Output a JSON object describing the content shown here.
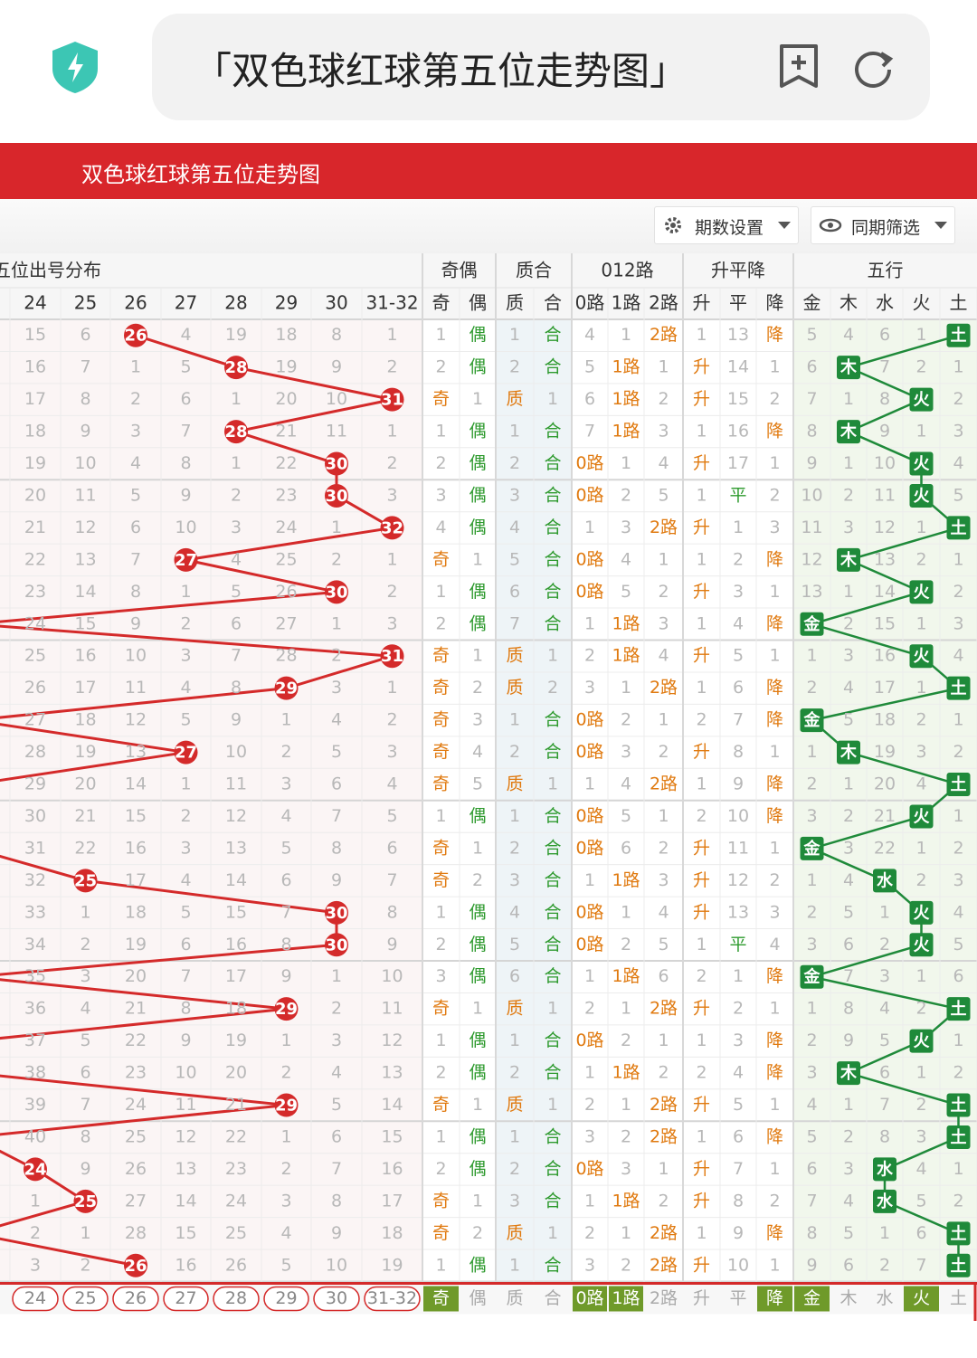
{
  "browser": {
    "search_text": "「双色球红球第五位走势图」"
  },
  "header": {
    "title": "双色球红球第五位走势图"
  },
  "toolbar": {
    "buttons": [
      "期数设置",
      "同期筛选"
    ]
  },
  "table": {
    "groups": [
      "红球第五位出号分布",
      "奇偶",
      "质合",
      "012路",
      "升平降",
      "五行"
    ],
    "columns": [
      "24",
      "25",
      "26",
      "27",
      "28",
      "29",
      "30",
      "31-32",
      "奇",
      "偶",
      "质",
      "合",
      "0路",
      "1路",
      "2路",
      "升",
      "平",
      "降",
      "金",
      "木",
      "水",
      "火",
      "土"
    ],
    "rows": [
      {
        "cells": [
          15,
          6,
          26,
          4,
          19,
          18,
          8,
          1,
          1,
          "偶",
          1,
          "合",
          4,
          1,
          "2路",
          1,
          13,
          "降",
          5,
          4,
          6,
          1,
          "土"
        ],
        "hit": 2
      },
      {
        "cells": [
          16,
          7,
          1,
          5,
          28,
          19,
          9,
          2,
          2,
          "偶",
          2,
          "合",
          5,
          "1路",
          1,
          "升",
          14,
          1,
          6,
          "木",
          7,
          2,
          1
        ],
        "hit": 4
      },
      {
        "cells": [
          17,
          8,
          2,
          6,
          1,
          20,
          10,
          31,
          "奇",
          1,
          "质",
          1,
          6,
          "1路",
          2,
          "升",
          15,
          2,
          7,
          1,
          8,
          "火",
          2
        ],
        "hit": 7
      },
      {
        "cells": [
          18,
          9,
          3,
          7,
          28,
          21,
          11,
          1,
          1,
          "偶",
          1,
          "合",
          7,
          "1路",
          3,
          1,
          16,
          "降",
          8,
          "木",
          9,
          1,
          3
        ],
        "hit": 4
      },
      {
        "cells": [
          19,
          10,
          4,
          8,
          1,
          22,
          30,
          2,
          2,
          "偶",
          2,
          "合",
          "0路",
          1,
          4,
          "升",
          17,
          1,
          9,
          1,
          10,
          "火",
          4
        ],
        "hit": 6
      },
      {
        "cells": [
          20,
          11,
          5,
          9,
          2,
          23,
          30,
          3,
          3,
          "偶",
          3,
          "合",
          "0路",
          2,
          5,
          1,
          "平",
          2,
          10,
          2,
          11,
          "火",
          5
        ],
        "hit": 6
      },
      {
        "cells": [
          21,
          12,
          6,
          10,
          3,
          24,
          1,
          32,
          4,
          "偶",
          4,
          "合",
          1,
          3,
          "2路",
          "升",
          1,
          3,
          11,
          3,
          12,
          1,
          "土"
        ],
        "hit": 7
      },
      {
        "cells": [
          22,
          13,
          7,
          27,
          4,
          25,
          2,
          1,
          "奇",
          1,
          5,
          "合",
          "0路",
          4,
          1,
          1,
          2,
          "降",
          12,
          "木",
          13,
          2,
          1
        ],
        "hit": 3
      },
      {
        "cells": [
          23,
          14,
          8,
          1,
          5,
          26,
          30,
          2,
          1,
          "偶",
          6,
          "合",
          "0路",
          5,
          2,
          "升",
          3,
          1,
          13,
          1,
          14,
          "火",
          2
        ],
        "hit": 6
      },
      {
        "cells": [
          24,
          15,
          9,
          2,
          6,
          27,
          1,
          3,
          2,
          "偶",
          7,
          "合",
          1,
          "1路",
          3,
          1,
          4,
          "降",
          "金",
          2,
          15,
          1,
          3
        ],
        "hit": null
      },
      {
        "cells": [
          25,
          16,
          10,
          3,
          7,
          28,
          2,
          31,
          "奇",
          1,
          "质",
          1,
          2,
          "1路",
          4,
          "升",
          5,
          1,
          1,
          3,
          16,
          "火",
          4
        ],
        "hit": 7
      },
      {
        "cells": [
          26,
          17,
          11,
          4,
          8,
          29,
          3,
          1,
          "奇",
          2,
          "质",
          2,
          3,
          1,
          "2路",
          1,
          6,
          "降",
          2,
          4,
          17,
          1,
          "土"
        ],
        "hit": 5
      },
      {
        "cells": [
          27,
          18,
          12,
          5,
          9,
          1,
          4,
          2,
          "奇",
          3,
          1,
          "合",
          "0路",
          2,
          1,
          2,
          7,
          "降",
          "金",
          5,
          18,
          2,
          1
        ],
        "hit": null
      },
      {
        "cells": [
          28,
          19,
          13,
          27,
          10,
          2,
          5,
          3,
          "奇",
          4,
          2,
          "合",
          "0路",
          3,
          2,
          "升",
          8,
          1,
          1,
          "木",
          19,
          3,
          2
        ],
        "hit": 3
      },
      {
        "cells": [
          29,
          20,
          14,
          1,
          11,
          3,
          6,
          4,
          "奇",
          5,
          "质",
          1,
          1,
          4,
          "2路",
          1,
          9,
          "降",
          2,
          1,
          20,
          4,
          "土"
        ],
        "hit": null
      },
      {
        "cells": [
          30,
          21,
          15,
          2,
          12,
          4,
          7,
          5,
          1,
          "偶",
          1,
          "合",
          "0路",
          5,
          1,
          2,
          10,
          "降",
          3,
          2,
          21,
          "火",
          1
        ],
        "hit": null
      },
      {
        "cells": [
          31,
          22,
          16,
          3,
          13,
          5,
          8,
          6,
          "奇",
          1,
          2,
          "合",
          "0路",
          6,
          2,
          "升",
          11,
          1,
          "金",
          3,
          22,
          1,
          2
        ],
        "hit": null
      },
      {
        "cells": [
          32,
          25,
          17,
          4,
          14,
          6,
          9,
          7,
          "奇",
          2,
          3,
          "合",
          1,
          "1路",
          3,
          "升",
          12,
          2,
          1,
          4,
          "水",
          2,
          3
        ],
        "hit": 1
      },
      {
        "cells": [
          33,
          1,
          18,
          5,
          15,
          7,
          30,
          8,
          1,
          "偶",
          4,
          "合",
          "0路",
          1,
          4,
          "升",
          13,
          3,
          2,
          5,
          1,
          "火",
          4
        ],
        "hit": 6
      },
      {
        "cells": [
          34,
          2,
          19,
          6,
          16,
          8,
          30,
          9,
          2,
          "偶",
          5,
          "合",
          "0路",
          2,
          5,
          1,
          "平",
          4,
          3,
          6,
          2,
          "火",
          5
        ],
        "hit": 6
      },
      {
        "cells": [
          35,
          3,
          20,
          7,
          17,
          9,
          1,
          10,
          3,
          "偶",
          6,
          "合",
          1,
          "1路",
          6,
          2,
          1,
          "降",
          "金",
          7,
          3,
          1,
          6
        ],
        "hit": null
      },
      {
        "cells": [
          36,
          4,
          21,
          8,
          18,
          29,
          2,
          11,
          "奇",
          1,
          "质",
          1,
          2,
          1,
          "2路",
          "升",
          2,
          1,
          1,
          8,
          4,
          2,
          "土"
        ],
        "hit": 5
      },
      {
        "cells": [
          37,
          5,
          22,
          9,
          19,
          1,
          3,
          12,
          1,
          "偶",
          1,
          "合",
          "0路",
          2,
          1,
          1,
          3,
          "降",
          2,
          9,
          5,
          "火",
          1
        ],
        "hit": null
      },
      {
        "cells": [
          38,
          6,
          23,
          10,
          20,
          2,
          4,
          13,
          2,
          "偶",
          2,
          "合",
          1,
          "1路",
          2,
          2,
          4,
          "降",
          3,
          "木",
          6,
          1,
          2
        ],
        "hit": null
      },
      {
        "cells": [
          39,
          7,
          24,
          11,
          21,
          29,
          5,
          14,
          "奇",
          1,
          "质",
          1,
          2,
          1,
          "2路",
          "升",
          5,
          1,
          4,
          1,
          7,
          2,
          "土"
        ],
        "hit": 5
      },
      {
        "cells": [
          40,
          8,
          25,
          12,
          22,
          1,
          6,
          15,
          1,
          "偶",
          1,
          "合",
          3,
          2,
          "2路",
          1,
          6,
          "降",
          5,
          2,
          8,
          3,
          "土"
        ],
        "hit": null
      },
      {
        "cells": [
          24,
          9,
          26,
          13,
          23,
          2,
          7,
          16,
          2,
          "偶",
          2,
          "合",
          "0路",
          3,
          1,
          "升",
          7,
          1,
          6,
          3,
          "水",
          4,
          1
        ],
        "hit": 0
      },
      {
        "cells": [
          1,
          25,
          27,
          14,
          24,
          3,
          8,
          17,
          "奇",
          1,
          3,
          "合",
          1,
          "1路",
          2,
          "升",
          8,
          2,
          7,
          4,
          "水",
          5,
          2
        ],
        "hit": 1
      },
      {
        "cells": [
          2,
          1,
          28,
          15,
          25,
          4,
          9,
          18,
          "奇",
          2,
          "质",
          1,
          2,
          1,
          "2路",
          1,
          9,
          "降",
          8,
          5,
          1,
          6,
          "土"
        ],
        "hit": null
      },
      {
        "cells": [
          3,
          2,
          26,
          16,
          26,
          5,
          10,
          19,
          1,
          "偶",
          1,
          "合",
          3,
          2,
          "2路",
          "升",
          10,
          1,
          9,
          6,
          2,
          7,
          "土"
        ],
        "hit": 2
      }
    ],
    "footer_selected": [
      8,
      12,
      13,
      17,
      18,
      21
    ]
  }
}
